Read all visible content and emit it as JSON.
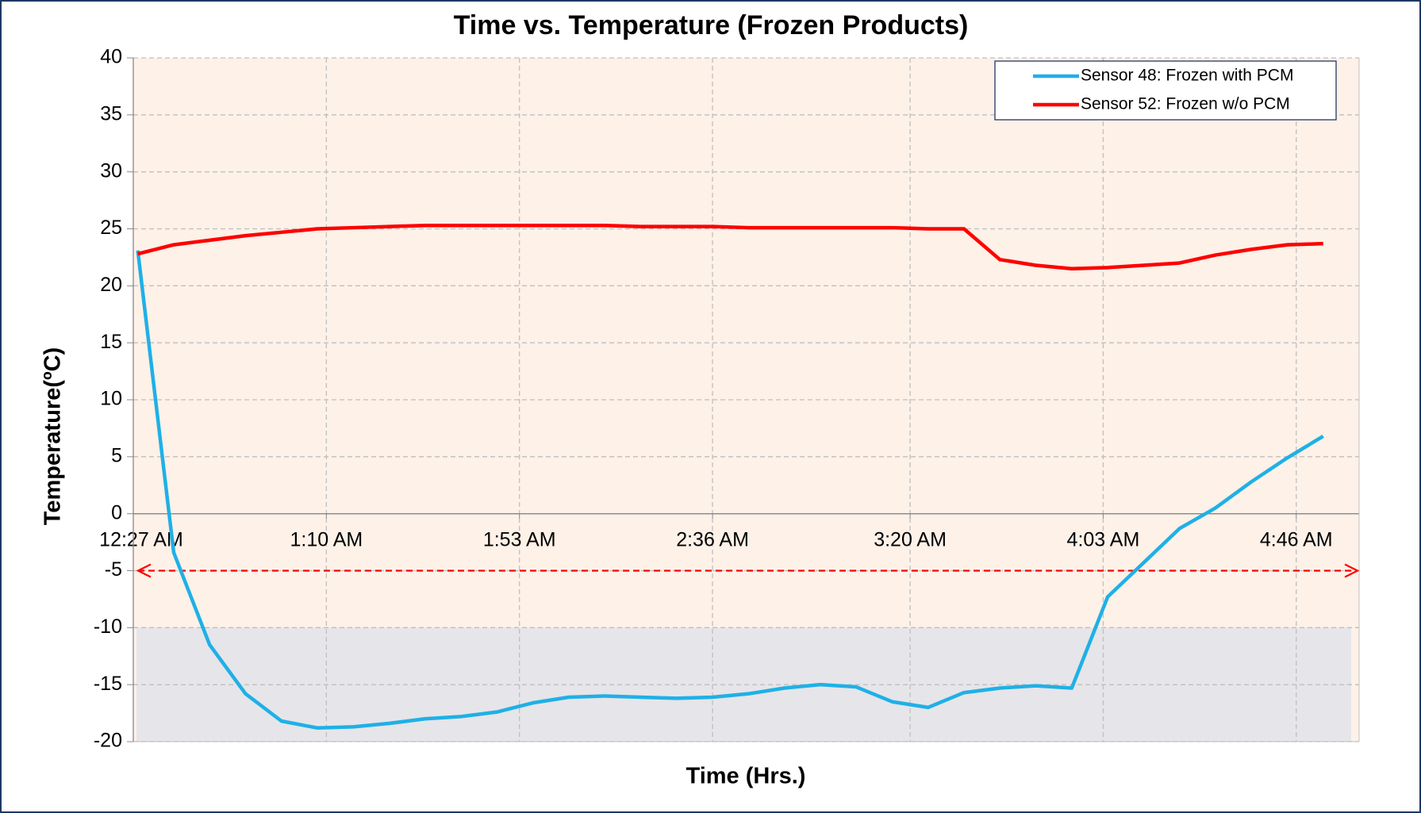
{
  "chart_data": {
    "type": "line",
    "title": "Time vs. Temperature (Frozen Products)",
    "x_label": "Time (Hrs.)",
    "y_label": "Temperature(ºC)",
    "x": [
      28,
      36,
      44,
      52,
      60,
      68,
      76,
      84,
      92,
      100,
      108,
      116,
      124,
      132,
      140,
      148,
      156,
      164,
      172,
      180,
      188,
      196,
      204,
      212,
      220,
      228,
      236,
      244,
      252,
      260,
      268,
      276,
      284,
      292
    ],
    "series": [
      {
        "name": "Sensor 48: Frozen with PCM",
        "color": "#1fb0e6",
        "values": [
          23.1,
          -3.4,
          -11.5,
          -15.8,
          -18.2,
          -18.8,
          -18.7,
          -18.4,
          -18.0,
          -17.8,
          -17.4,
          -16.6,
          -16.1,
          -16.0,
          -16.1,
          -16.2,
          -16.1,
          -15.8,
          -15.3,
          -15.0,
          -15.2,
          -16.5,
          -17.0,
          -15.7,
          -15.3,
          -15.1,
          -15.3,
          -7.3,
          -4.3,
          -1.3,
          0.5,
          2.8,
          4.9,
          6.8
        ]
      },
      {
        "name": "Sensor 52: Frozen w/o PCM",
        "color": "#ff0000",
        "values": [
          22.8,
          23.6,
          24.0,
          24.4,
          24.7,
          25.0,
          25.1,
          25.2,
          25.3,
          25.3,
          25.3,
          25.3,
          25.3,
          25.3,
          25.2,
          25.2,
          25.2,
          25.1,
          25.1,
          25.1,
          25.1,
          25.1,
          25.0,
          25.0,
          22.3,
          21.8,
          21.5,
          21.6,
          21.8,
          22.0,
          22.7,
          23.2,
          23.6,
          23.7
        ]
      }
    ],
    "xlim": [
      27,
      300
    ],
    "xticks": [
      {
        "value": 27,
        "label": "12:27 AM"
      },
      {
        "value": 70,
        "label": "1:10 AM"
      },
      {
        "value": 113,
        "label": "1:53 AM"
      },
      {
        "value": 156,
        "label": "2:36 AM"
      },
      {
        "value": 200,
        "label": "3:20 AM"
      },
      {
        "value": 243,
        "label": "4:03 AM"
      },
      {
        "value": 286,
        "label": "4:46 AM"
      }
    ],
    "ylim": [
      -20,
      40
    ],
    "yticks": [
      -20,
      -15,
      -10,
      -5,
      0,
      5,
      10,
      15,
      20,
      25,
      30,
      35,
      40
    ],
    "shaded_range": [
      -20,
      -10
    ],
    "reference_line": -5,
    "grid": true,
    "legend": "upper right"
  }
}
